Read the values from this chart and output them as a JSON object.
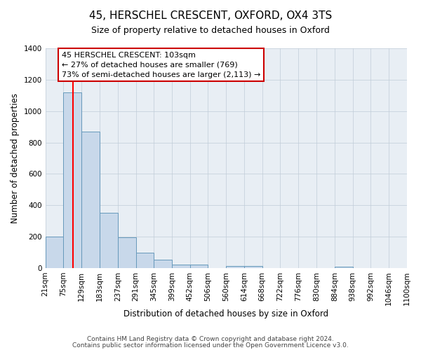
{
  "title": "45, HERSCHEL CRESCENT, OXFORD, OX4 3TS",
  "subtitle": "Size of property relative to detached houses in Oxford",
  "xlabel": "Distribution of detached houses by size in Oxford",
  "ylabel": "Number of detached properties",
  "bin_edges": [
    21,
    75,
    129,
    183,
    237,
    291,
    345,
    399,
    452,
    506,
    560,
    614,
    668,
    722,
    776,
    830,
    884,
    938,
    992,
    1046,
    1100
  ],
  "bin_labels": [
    "21sqm",
    "75sqm",
    "129sqm",
    "183sqm",
    "237sqm",
    "291sqm",
    "345sqm",
    "399sqm",
    "452sqm",
    "506sqm",
    "560sqm",
    "614sqm",
    "668sqm",
    "722sqm",
    "776sqm",
    "830sqm",
    "884sqm",
    "938sqm",
    "992sqm",
    "1046sqm",
    "1100sqm"
  ],
  "counts": [
    200,
    1120,
    870,
    350,
    195,
    100,
    55,
    20,
    20,
    0,
    15,
    15,
    0,
    0,
    0,
    0,
    10,
    0,
    0,
    0
  ],
  "bar_color": "#c8d8ea",
  "bar_edge_color": "#6699bb",
  "red_line_x": 103,
  "ylim": [
    0,
    1400
  ],
  "yticks": [
    0,
    200,
    400,
    600,
    800,
    1000,
    1200,
    1400
  ],
  "annotation_line1": "45 HERSCHEL CRESCENT: 103sqm",
  "annotation_line2": "← 27% of detached houses are smaller (769)",
  "annotation_line3": "73% of semi-detached houses are larger (2,113) →",
  "annotation_box_color": "#ffffff",
  "annotation_box_edge": "#cc0000",
  "footer_line1": "Contains HM Land Registry data © Crown copyright and database right 2024.",
  "footer_line2": "Contains public sector information licensed under the Open Government Licence v3.0.",
  "background_color": "#ffffff",
  "plot_bg_color": "#e8eef4",
  "grid_color": "#c0ccd8",
  "title_fontsize": 11,
  "subtitle_fontsize": 9
}
